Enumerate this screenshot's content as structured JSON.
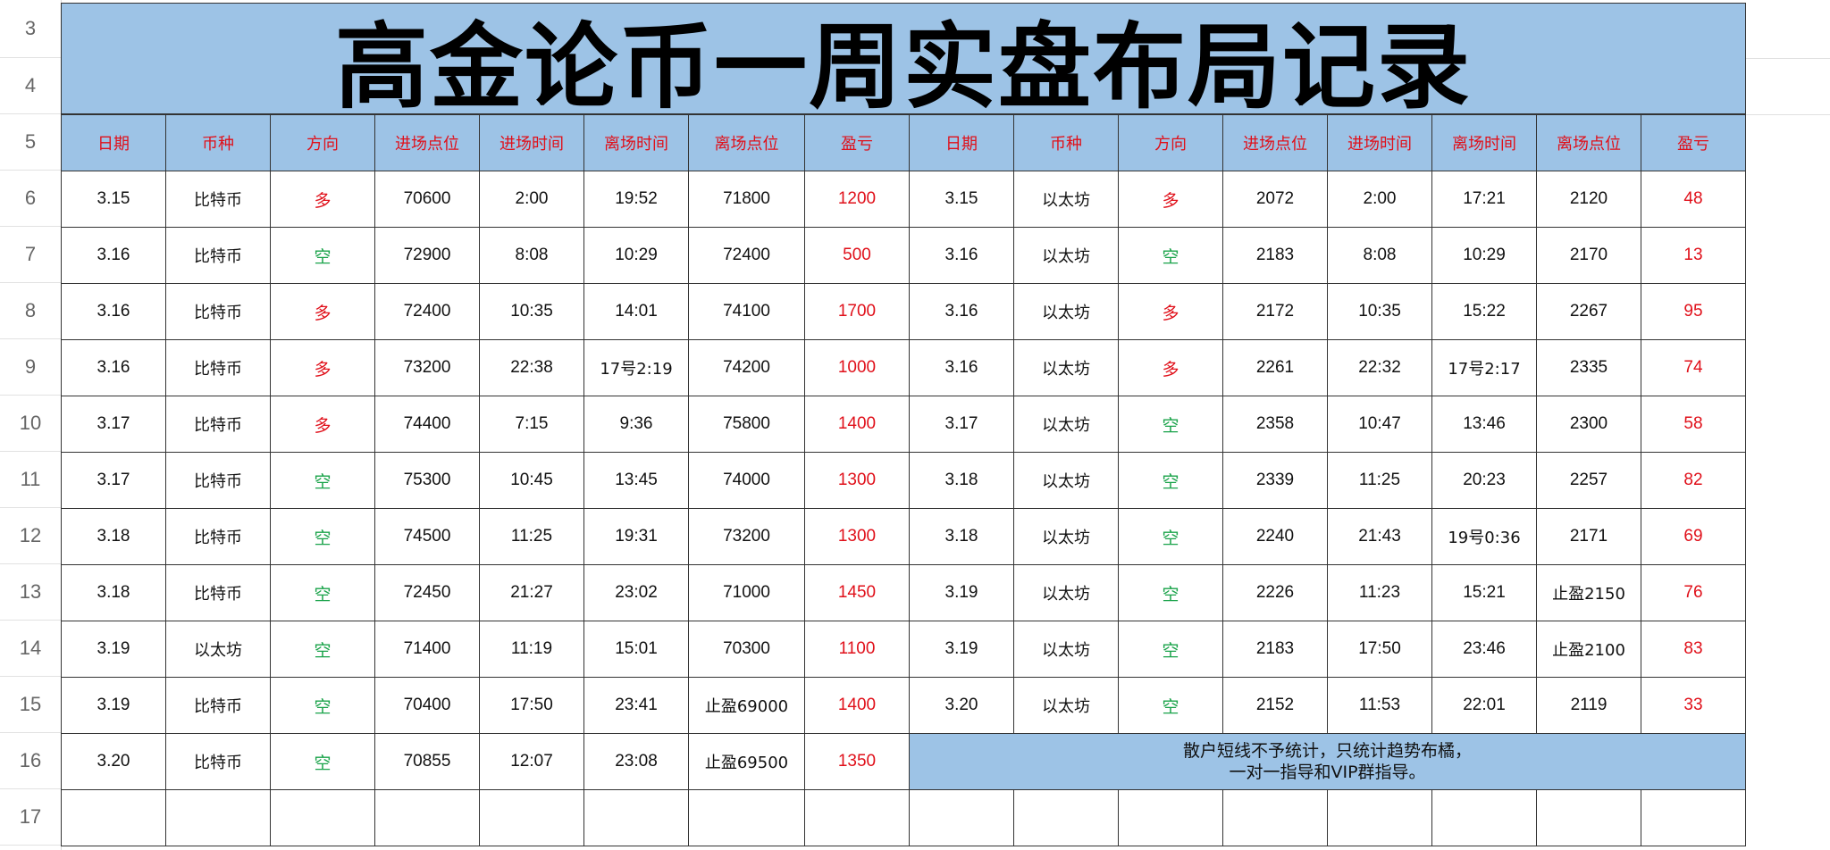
{
  "title": "高金论币一周实盘布局记录",
  "row_numbers": [
    "3",
    "4",
    "5",
    "6",
    "7",
    "8",
    "9",
    "10",
    "11",
    "12",
    "13",
    "14",
    "15",
    "16",
    "17"
  ],
  "headers": [
    "日期",
    "币种",
    "方向",
    "进场点位",
    "进场时间",
    "离场时间",
    "离场点位",
    "盈亏",
    "日期",
    "币种",
    "方向",
    "进场点位",
    "进场时间",
    "离场时间",
    "离场点位",
    "盈亏"
  ],
  "rows": [
    {
      "left": [
        "3.15",
        "比特币",
        "多",
        "70600",
        "2:00",
        "19:52",
        "71800",
        "1200"
      ],
      "right": [
        "3.15",
        "以太坊",
        "多",
        "2072",
        "2:00",
        "17:21",
        "2120",
        "48"
      ]
    },
    {
      "left": [
        "3.16",
        "比特币",
        "空",
        "72900",
        "8:08",
        "10:29",
        "72400",
        "500"
      ],
      "right": [
        "3.16",
        "以太坊",
        "空",
        "2183",
        "8:08",
        "10:29",
        "2170",
        "13"
      ]
    },
    {
      "left": [
        "3.16",
        "比特币",
        "多",
        "72400",
        "10:35",
        "14:01",
        "74100",
        "1700"
      ],
      "right": [
        "3.16",
        "以太坊",
        "多",
        "2172",
        "10:35",
        "15:22",
        "2267",
        "95"
      ]
    },
    {
      "left": [
        "3.16",
        "比特币",
        "多",
        "73200",
        "22:38",
        "17号2:19",
        "74200",
        "1000"
      ],
      "right": [
        "3.16",
        "以太坊",
        "多",
        "2261",
        "22:32",
        "17号2:17",
        "2335",
        "74"
      ]
    },
    {
      "left": [
        "3.17",
        "比特币",
        "多",
        "74400",
        "7:15",
        "9:36",
        "75800",
        "1400"
      ],
      "right": [
        "3.17",
        "以太坊",
        "空",
        "2358",
        "10:47",
        "13:46",
        "2300",
        "58"
      ]
    },
    {
      "left": [
        "3.17",
        "比特币",
        "空",
        "75300",
        "10:45",
        "13:45",
        "74000",
        "1300"
      ],
      "right": [
        "3.18",
        "以太坊",
        "空",
        "2339",
        "11:25",
        "20:23",
        "2257",
        "82"
      ]
    },
    {
      "left": [
        "3.18",
        "比特币",
        "空",
        "74500",
        "11:25",
        "19:31",
        "73200",
        "1300"
      ],
      "right": [
        "3.18",
        "以太坊",
        "空",
        "2240",
        "21:43",
        "19号0:36",
        "2171",
        "69"
      ]
    },
    {
      "left": [
        "3.18",
        "比特币",
        "空",
        "72450",
        "21:27",
        "23:02",
        "71000",
        "1450"
      ],
      "right": [
        "3.19",
        "以太坊",
        "空",
        "2226",
        "11:23",
        "15:21",
        "止盈2150",
        "76"
      ]
    },
    {
      "left": [
        "3.19",
        "以太坊",
        "空",
        "71400",
        "11:19",
        "15:01",
        "70300",
        "1100"
      ],
      "right": [
        "3.19",
        "以太坊",
        "空",
        "2183",
        "17:50",
        "23:46",
        "止盈2100",
        "83"
      ]
    },
    {
      "left": [
        "3.19",
        "比特币",
        "空",
        "70400",
        "17:50",
        "23:41",
        "止盈69000",
        "1400"
      ],
      "right": [
        "3.20",
        "以太坊",
        "空",
        "2152",
        "11:53",
        "22:01",
        "2119",
        "33"
      ]
    }
  ],
  "last_row": [
    "3.20",
    "比特币",
    "空",
    "70855",
    "12:07",
    "23:08",
    "止盈69500",
    "1350"
  ],
  "note_line1": "散户短线不予统计，只统计趋势布橘，",
  "note_line2": "一对一指导和VIP群指导。",
  "colors": {
    "header_bg": "#9dc3e6",
    "long": "#e0101a",
    "short": "#1aa34a",
    "pnl": "#e0101a"
  }
}
